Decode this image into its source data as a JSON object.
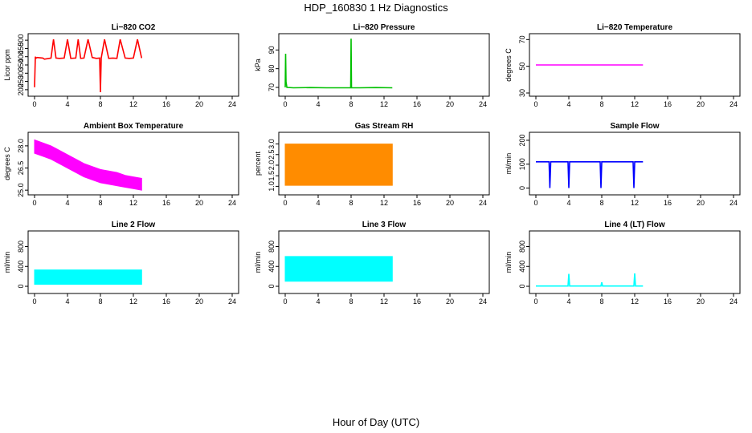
{
  "figure": {
    "title": "HDP_160830  1 Hz Diagnostics",
    "xlabel": "Hour of Day (UTC)"
  },
  "chart_data": [
    {
      "type": "line",
      "title": "Li−820 CO2",
      "ylabel": "Licor ppm",
      "color": "#ff0000",
      "xlim": [
        0,
        24
      ],
      "ylim": [
        180,
        520
      ],
      "xticks": [
        "0",
        "4",
        "8",
        "12",
        "16",
        "20",
        "24"
      ],
      "yticks": [
        "200",
        "250",
        "300",
        "350",
        "400",
        "450",
        "500"
      ],
      "x": [
        0,
        0.1,
        0.15,
        0.3,
        1,
        1.2,
        2,
        2.3,
        2.6,
        3,
        3.6,
        4,
        4.4,
        5,
        5.3,
        5.6,
        6,
        6.5,
        7,
        7.5,
        7.9,
        8,
        8.1,
        8.5,
        9,
        9.5,
        10,
        10.4,
        11,
        11.5,
        12,
        12.5,
        13
      ],
      "y": [
        215,
        400,
        390,
        395,
        392,
        385,
        392,
        505,
        392,
        390,
        392,
        505,
        390,
        392,
        505,
        390,
        392,
        505,
        395,
        390,
        392,
        185,
        392,
        505,
        390,
        392,
        390,
        505,
        392,
        390,
        392,
        505,
        392
      ]
    },
    {
      "type": "line",
      "title": "Li−820 Pressure",
      "ylabel": "kPa",
      "color": "#00c000",
      "xlim": [
        0,
        24
      ],
      "ylim": [
        67,
        97
      ],
      "xticks": [
        "0",
        "4",
        "8",
        "12",
        "16",
        "20",
        "24"
      ],
      "yticks": [
        "70",
        "80",
        "90"
      ],
      "x": [
        0,
        0.05,
        0.1,
        0.2,
        1,
        3,
        5,
        7,
        7.95,
        8,
        8.05,
        9,
        11,
        13
      ],
      "y": [
        70,
        88,
        73,
        70,
        69.8,
        69.9,
        69.8,
        69.8,
        69.8,
        96,
        69.8,
        69.8,
        69.9,
        69.8
      ]
    },
    {
      "type": "line",
      "title": "Li−820 Temperature",
      "ylabel": "degrees C",
      "color": "#ff00ff",
      "xlim": [
        0,
        24
      ],
      "ylim": [
        30,
        72
      ],
      "xticks": [
        "0",
        "4",
        "8",
        "12",
        "16",
        "20",
        "24"
      ],
      "yticks": [
        "30",
        "50",
        "70"
      ],
      "x": [
        0,
        13
      ],
      "y": [
        51,
        51
      ]
    },
    {
      "type": "area",
      "title": "Ambient Box Temperature",
      "ylabel": "degrees C",
      "color": "#ff00ff",
      "xlim": [
        0,
        24
      ],
      "ylim": [
        24.9,
        28.7
      ],
      "xticks": [
        "0",
        "4",
        "8",
        "12",
        "16",
        "20",
        "24"
      ],
      "yticks": [
        "25.0",
        "26.5",
        "28.0"
      ],
      "x": [
        0,
        1,
        2,
        3,
        4,
        5,
        6,
        7,
        8,
        9,
        10,
        11,
        12,
        13
      ],
      "y_high": [
        28.4,
        28.2,
        28.0,
        27.7,
        27.4,
        27.1,
        26.8,
        26.6,
        26.4,
        26.3,
        26.2,
        26.0,
        25.9,
        25.8
      ],
      "y_low": [
        27.5,
        27.3,
        27.1,
        26.8,
        26.5,
        26.2,
        25.9,
        25.7,
        25.5,
        25.4,
        25.3,
        25.2,
        25.1,
        25.0
      ]
    },
    {
      "type": "area",
      "title": "Gas Stream RH",
      "ylabel": "percent",
      "color": "#ff8c00",
      "xlim": [
        0,
        24
      ],
      "ylim": [
        0.75,
        3.4
      ],
      "xticks": [
        "0",
        "4",
        "8",
        "12",
        "16",
        "20",
        "24"
      ],
      "yticks": [
        "1.0",
        "1.5",
        "2.0",
        "2.5",
        "3.0"
      ],
      "x": [
        0,
        13
      ],
      "y_high": [
        3.0,
        3.0
      ],
      "y_low": [
        1.05,
        1.05
      ]
    },
    {
      "type": "line",
      "title": "Sample Flow",
      "ylabel": "ml/min",
      "color": "#0000ff",
      "xlim": [
        0,
        24
      ],
      "ylim": [
        -15,
        220
      ],
      "xticks": [
        "0",
        "4",
        "8",
        "12",
        "16",
        "20",
        "24"
      ],
      "yticks": [
        "0",
        "100",
        "200"
      ],
      "x": [
        0,
        1.6,
        1.7,
        1.8,
        3.9,
        4.0,
        4.1,
        7.8,
        7.9,
        8.0,
        11.8,
        11.9,
        12.0,
        13
      ],
      "y": [
        110,
        110,
        0,
        110,
        110,
        0,
        110,
        110,
        0,
        110,
        110,
        0,
        110,
        110
      ]
    },
    {
      "type": "area",
      "title": "Line 2 Flow",
      "ylabel": "ml/min",
      "color": "#00ffff",
      "xlim": [
        0,
        24
      ],
      "ylim": [
        -80,
        1050
      ],
      "xticks": [
        "0",
        "4",
        "8",
        "12",
        "16",
        "20",
        "24"
      ],
      "yticks": [
        "0",
        "400",
        "800"
      ],
      "x": [
        0,
        13
      ],
      "y_high": [
        330,
        330
      ],
      "y_low": [
        40,
        40
      ]
    },
    {
      "type": "area",
      "title": "Line 3 Flow",
      "ylabel": "ml/min",
      "color": "#00ffff",
      "xlim": [
        0,
        24
      ],
      "ylim": [
        -80,
        1050
      ],
      "xticks": [
        "0",
        "4",
        "8",
        "12",
        "16",
        "20",
        "24"
      ],
      "yticks": [
        "0",
        "400",
        "800"
      ],
      "x": [
        0,
        13
      ],
      "y_high": [
        600,
        600
      ],
      "y_low": [
        100,
        100
      ]
    },
    {
      "type": "line",
      "title": "Line 4 (LT) Flow",
      "ylabel": "ml/min",
      "color": "#00ffff",
      "xlim": [
        0,
        24
      ],
      "ylim": [
        -80,
        1050
      ],
      "xticks": [
        "0",
        "4",
        "8",
        "12",
        "16",
        "20",
        "24"
      ],
      "yticks": [
        "0",
        "400",
        "800"
      ],
      "x": [
        0,
        3.9,
        4.0,
        4.1,
        7.9,
        8.0,
        8.1,
        11.9,
        12.0,
        12.1,
        13
      ],
      "y": [
        5,
        5,
        250,
        5,
        5,
        80,
        5,
        5,
        260,
        5,
        5
      ]
    }
  ]
}
